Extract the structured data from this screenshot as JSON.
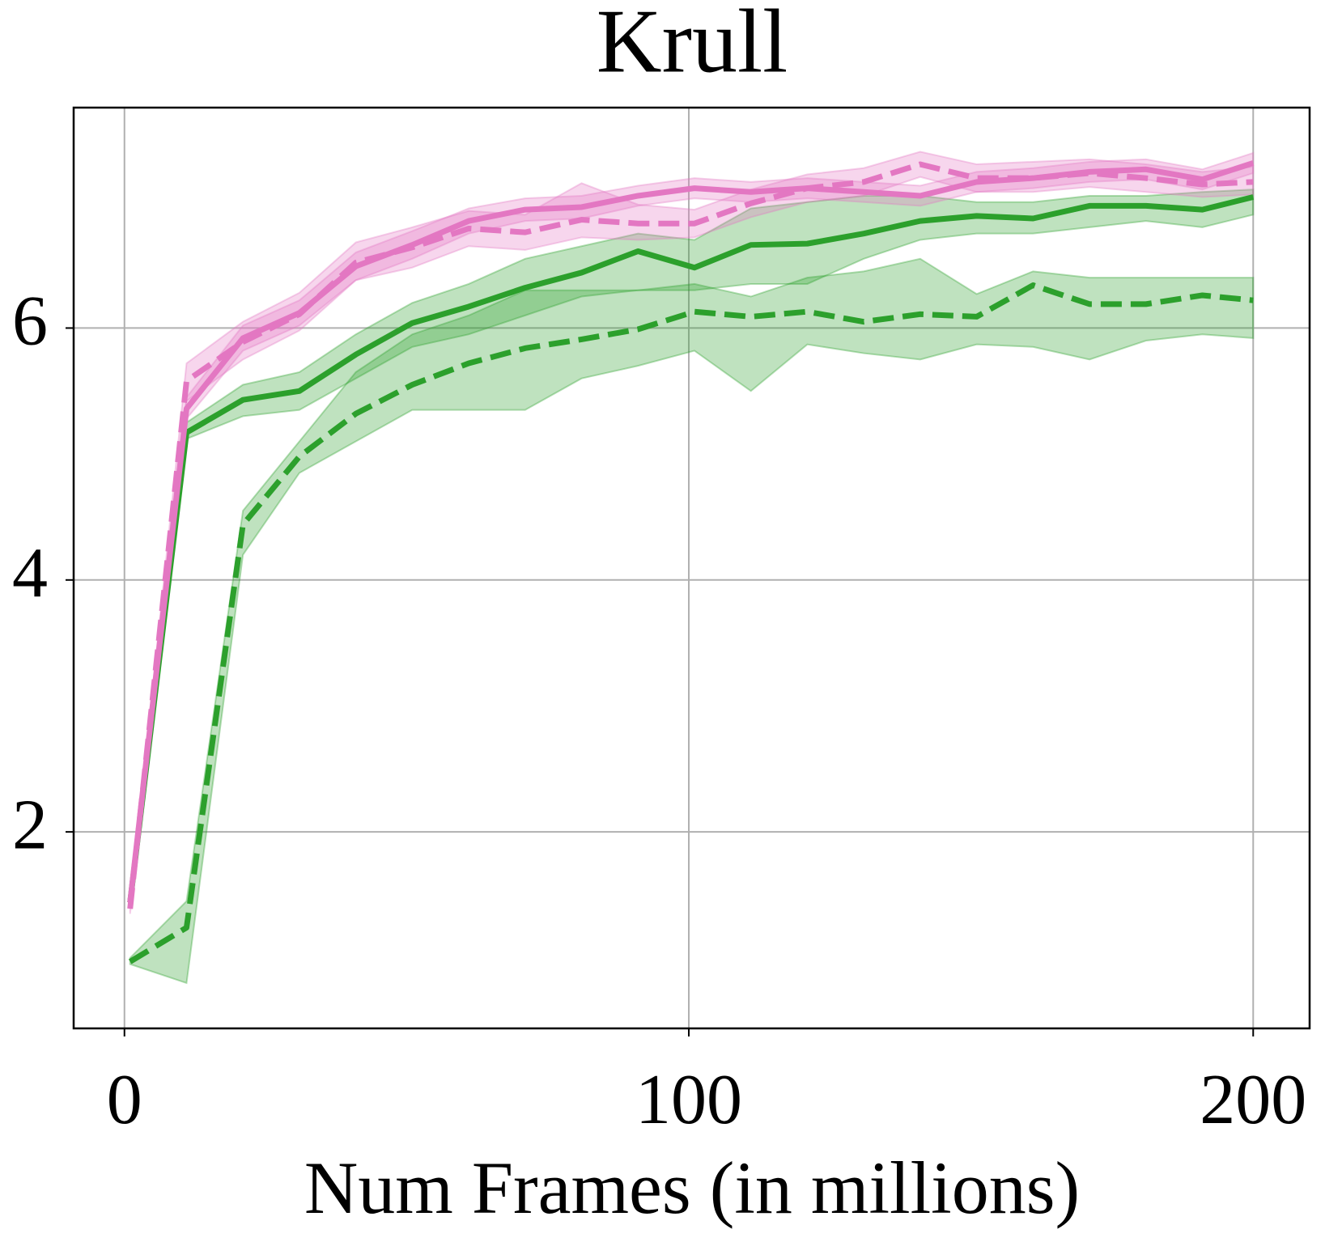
{
  "chart_data": {
    "type": "line",
    "title": "Krull",
    "x_label": "Num Frames (in millions)",
    "x": [
      1,
      11,
      21,
      31,
      41,
      51,
      61,
      71,
      81,
      91,
      101,
      111,
      121,
      131,
      141,
      151,
      161,
      171,
      181,
      191,
      200
    ],
    "xlim": [
      -9,
      210
    ],
    "xticks": [
      0,
      100,
      200
    ],
    "ylim": [
      0.44,
      7.75
    ],
    "yticks": [
      2,
      4,
      6
    ],
    "grid": true,
    "series": [
      {
        "color": "#2ca02c",
        "linestyle": "dashed",
        "values": [
          0.97,
          1.24,
          4.44,
          4.98,
          5.32,
          5.55,
          5.72,
          5.84,
          5.91,
          5.99,
          6.13,
          6.09,
          6.13,
          6.05,
          6.11,
          6.09,
          6.34,
          6.19,
          6.19,
          6.26,
          6.22
        ],
        "lower": [
          0.95,
          0.8,
          4.2,
          4.85,
          5.1,
          5.35,
          5.35,
          5.35,
          5.6,
          5.7,
          5.82,
          5.5,
          5.87,
          5.8,
          5.75,
          5.87,
          5.85,
          5.75,
          5.9,
          5.95,
          5.92
        ],
        "upper": [
          1.0,
          1.45,
          4.55,
          5.1,
          5.65,
          5.95,
          6.1,
          6.3,
          6.3,
          6.3,
          6.35,
          6.25,
          6.4,
          6.45,
          6.55,
          6.27,
          6.45,
          6.4,
          6.4,
          6.4,
          6.4
        ]
      },
      {
        "color": "#2ca02c",
        "linestyle": "solid",
        "values": [
          1.44,
          5.17,
          5.43,
          5.5,
          5.79,
          6.04,
          6.17,
          6.32,
          6.44,
          6.61,
          6.48,
          6.66,
          6.67,
          6.75,
          6.85,
          6.89,
          6.87,
          6.97,
          6.97,
          6.94,
          7.04
        ],
        "lower": [
          1.42,
          5.12,
          5.3,
          5.35,
          5.6,
          5.85,
          5.95,
          6.1,
          6.25,
          6.3,
          6.3,
          6.35,
          6.35,
          6.55,
          6.7,
          6.75,
          6.75,
          6.8,
          6.85,
          6.8,
          6.9
        ],
        "upper": [
          1.46,
          5.25,
          5.55,
          5.65,
          5.95,
          6.2,
          6.35,
          6.55,
          6.65,
          6.75,
          6.7,
          6.95,
          7.0,
          7.05,
          7.05,
          7.0,
          7.0,
          7.05,
          7.05,
          7.08,
          7.1
        ]
      },
      {
        "color": "#e377c2",
        "linestyle": "solid",
        "values": [
          1.44,
          5.36,
          5.92,
          6.12,
          6.49,
          6.66,
          6.85,
          6.94,
          6.96,
          7.05,
          7.11,
          7.08,
          7.11,
          7.08,
          7.05,
          7.16,
          7.19,
          7.24,
          7.26,
          7.18,
          7.31
        ],
        "lower": [
          1.4,
          5.28,
          5.82,
          6.02,
          6.38,
          6.55,
          6.75,
          6.85,
          6.87,
          6.97,
          7.03,
          7.0,
          7.03,
          7.0,
          6.97,
          7.08,
          7.11,
          7.16,
          7.18,
          7.1,
          7.23
        ],
        "upper": [
          1.48,
          5.45,
          6.02,
          6.22,
          6.6,
          6.77,
          6.95,
          7.03,
          7.05,
          7.13,
          7.19,
          7.16,
          7.19,
          7.16,
          7.13,
          7.24,
          7.27,
          7.32,
          7.34,
          7.26,
          7.39
        ]
      },
      {
        "color": "#e377c2",
        "linestyle": "dashed",
        "values": [
          1.39,
          5.58,
          5.89,
          6.11,
          6.52,
          6.64,
          6.79,
          6.76,
          6.86,
          6.83,
          6.83,
          6.99,
          7.11,
          7.16,
          7.3,
          7.19,
          7.19,
          7.23,
          7.19,
          7.14,
          7.16
        ],
        "lower": [
          1.35,
          5.42,
          5.75,
          5.98,
          6.38,
          6.48,
          6.65,
          6.62,
          6.72,
          6.7,
          6.72,
          6.88,
          7.0,
          7.05,
          7.2,
          7.08,
          7.08,
          7.12,
          7.08,
          7.04,
          7.06
        ],
        "upper": [
          1.43,
          5.72,
          6.05,
          6.28,
          6.68,
          6.8,
          6.93,
          6.9,
          7.15,
          6.98,
          6.94,
          7.1,
          7.22,
          7.27,
          7.4,
          7.3,
          7.32,
          7.34,
          7.3,
          7.24,
          7.28
        ]
      }
    ]
  }
}
